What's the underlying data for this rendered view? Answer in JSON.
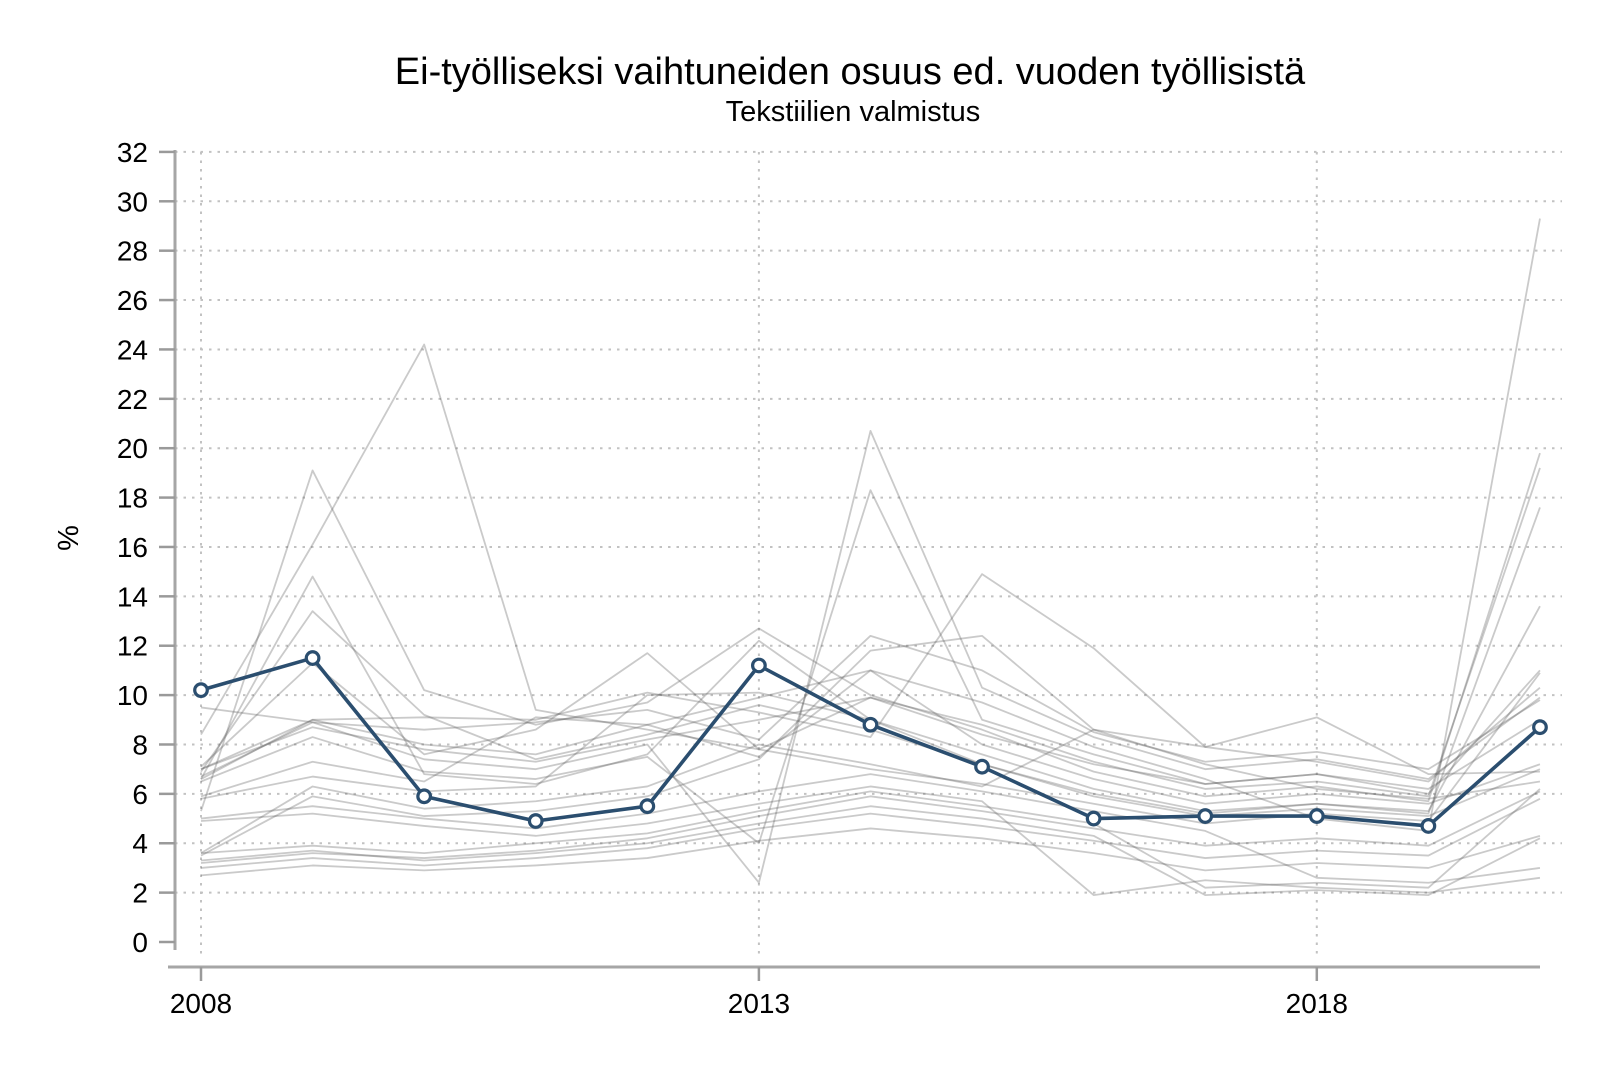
{
  "colors": {
    "highlight_line": "#2b4e6f",
    "marker_fill": "#ffffff",
    "background_line": "#5f5f5f",
    "background_line_opacity": 0.33,
    "grid_dot": "#c2c2c2",
    "axis_line": "#a6a6a6",
    "tick_mark": "#9a9a9a",
    "text": "#000000"
  },
  "chart_data": {
    "type": "line",
    "title": "Ei-työlliseksi vaihtuneiden osuus ed. vuoden työllisistä",
    "subtitle": "Tekstiilien valmistus",
    "xlabel": "",
    "ylabel": "%",
    "x": [
      2008,
      2009,
      2010,
      2011,
      2012,
      2013,
      2014,
      2015,
      2016,
      2017,
      2018,
      2019,
      2020
    ],
    "x_tick_years": [
      2008,
      2013,
      2018
    ],
    "x_tick_labels": [
      "2008",
      "2013",
      "2018"
    ],
    "y_ticks": [
      0,
      2,
      4,
      6,
      8,
      10,
      12,
      14,
      16,
      18,
      20,
      22,
      24,
      26,
      28,
      30,
      32
    ],
    "ylim": [
      0,
      32
    ],
    "grid": "dotted horizontal lines at every y tick except 0, dotted vertical lines at labeled years",
    "legend": "none",
    "highlight_series": {
      "name": "Tekstiilien valmistus",
      "values": [
        10.2,
        11.5,
        5.9,
        4.9,
        5.5,
        11.2,
        8.8,
        7.1,
        5.0,
        5.1,
        5.1,
        4.7,
        8.7
      ]
    },
    "background_series": [
      {
        "values": [
          8.4,
          16.1,
          24.2,
          9.4,
          8.6,
          7.8,
          9.9,
          8.4,
          7.2,
          6.4,
          6.8,
          6.0,
          11.0
        ]
      },
      {
        "values": [
          5.3,
          19.1,
          10.2,
          8.8,
          9.7,
          12.7,
          10.0,
          8.6,
          6.9,
          5.9,
          6.3,
          5.7,
          19.8
        ]
      },
      {
        "values": [
          6.6,
          14.8,
          6.8,
          6.4,
          7.6,
          12.2,
          9.0,
          7.6,
          6.2,
          5.3,
          5.6,
          5.2,
          17.6
        ]
      },
      {
        "values": [
          6.9,
          13.4,
          9.2,
          7.4,
          8.4,
          9.6,
          8.6,
          7.2,
          6.0,
          5.2,
          5.6,
          5.3,
          13.6
        ]
      },
      {
        "values": [
          7.1,
          11.3,
          7.6,
          8.6,
          11.7,
          7.8,
          7.0,
          6.4,
          5.6,
          4.8,
          5.2,
          4.9,
          10.9
        ]
      },
      {
        "values": [
          7.0,
          9.0,
          9.1,
          9.0,
          10.1,
          9.3,
          8.3,
          14.9,
          11.9,
          7.9,
          7.3,
          6.5,
          10.3
        ]
      },
      {
        "values": [
          6.7,
          8.9,
          7.4,
          7.0,
          8.0,
          2.4,
          20.7,
          10.3,
          8.3,
          7.0,
          7.4,
          6.6,
          9.9
        ]
      },
      {
        "values": [
          6.5,
          8.3,
          6.9,
          6.6,
          7.5,
          4.0,
          18.3,
          9.0,
          7.6,
          6.4,
          6.8,
          6.2,
          9.0
        ]
      },
      {
        "values": [
          5.9,
          7.3,
          6.5,
          9.1,
          8.8,
          7.5,
          11.0,
          8.0,
          6.6,
          5.6,
          6.0,
          5.6,
          7.2
        ]
      },
      {
        "values": [
          5.8,
          6.7,
          6.1,
          6.3,
          10.0,
          10.1,
          9.0,
          7.2,
          5.9,
          5.1,
          5.4,
          5.1,
          7.0
        ]
      },
      {
        "values": [
          3.6,
          6.3,
          5.4,
          5.7,
          6.3,
          8.0,
          7.2,
          6.3,
          8.6,
          7.9,
          9.1,
          6.8,
          6.9
        ]
      },
      {
        "values": [
          3.5,
          5.9,
          5.1,
          5.3,
          5.9,
          7.4,
          11.8,
          12.4,
          8.6,
          7.2,
          6.2,
          5.8,
          6.5
        ]
      },
      {
        "values": [
          3.2,
          3.6,
          3.4,
          3.7,
          4.2,
          5.1,
          5.9,
          5.3,
          4.6,
          3.9,
          4.2,
          3.9,
          6.1
        ]
      },
      {
        "values": [
          3.0,
          3.4,
          3.1,
          3.4,
          3.8,
          4.6,
          5.2,
          4.7,
          4.1,
          3.4,
          3.7,
          3.5,
          5.8
        ]
      },
      {
        "values": [
          2.7,
          3.1,
          2.9,
          3.1,
          3.4,
          4.1,
          4.6,
          4.2,
          3.6,
          2.9,
          3.2,
          3.0,
          4.3
        ]
      },
      {
        "values": [
          6.6,
          9.0,
          8.0,
          7.6,
          8.8,
          9.9,
          11.0,
          9.7,
          7.9,
          6.6,
          5.0,
          4.5,
          29.3
        ]
      },
      {
        "values": [
          7.0,
          8.7,
          7.8,
          7.3,
          8.2,
          9.0,
          9.9,
          8.8,
          7.3,
          6.2,
          6.5,
          5.9,
          19.2
        ]
      },
      {
        "values": [
          3.6,
          3.9,
          3.6,
          4.0,
          4.4,
          5.3,
          6.1,
          5.5,
          4.8,
          2.2,
          2.4,
          2.2,
          6.2
        ]
      },
      {
        "values": [
          3.3,
          3.7,
          3.3,
          3.6,
          4.0,
          4.8,
          5.5,
          5.0,
          4.3,
          1.9,
          2.1,
          1.9,
          4.2
        ]
      },
      {
        "values": [
          5.0,
          5.5,
          5.0,
          4.6,
          5.2,
          6.1,
          6.8,
          6.1,
          5.3,
          4.5,
          2.6,
          2.4,
          3.0
        ]
      },
      {
        "values": [
          4.9,
          5.2,
          4.7,
          4.3,
          4.8,
          5.6,
          6.3,
          5.7,
          1.9,
          2.5,
          2.2,
          2.0,
          2.6
        ]
      },
      {
        "values": [
          9.5,
          8.9,
          8.6,
          8.9,
          9.4,
          8.2,
          12.4,
          11.0,
          8.5,
          7.3,
          7.7,
          7.0,
          9.8
        ]
      }
    ]
  }
}
